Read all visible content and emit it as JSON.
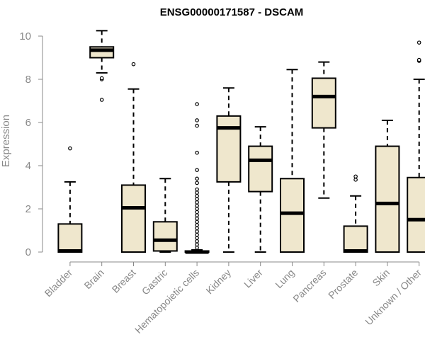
{
  "chart_data": {
    "type": "box",
    "title": "ENSG00000171587 - DSCAM",
    "xlabel": "",
    "ylabel": "Expression",
    "ylim": [
      0,
      10
    ],
    "yticks": [
      0,
      2,
      4,
      6,
      8,
      10
    ],
    "categories": [
      "Bladder",
      "Brain",
      "Breast",
      "Gastric",
      "Hematopoietic cells",
      "Kidney",
      "Liver",
      "Lung",
      "Pancreas",
      "Prostate",
      "Skin",
      "Unknown / Other"
    ],
    "boxes": [
      {
        "min": 0,
        "q1": 0,
        "median": 0.05,
        "q3": 1.3,
        "max": 3.25,
        "outliers": [
          4.8
        ]
      },
      {
        "min": 8.3,
        "q1": 9.0,
        "median": 9.35,
        "q3": 9.5,
        "max": 10.25,
        "outliers": [
          8.0,
          8.05,
          7.05
        ]
      },
      {
        "min": 0,
        "q1": 0,
        "median": 2.05,
        "q3": 3.1,
        "max": 7.55,
        "outliers": [
          8.7
        ]
      },
      {
        "min": 0,
        "q1": 0.05,
        "median": 0.55,
        "q3": 1.4,
        "max": 3.4,
        "outliers": []
      },
      {
        "min": 0,
        "q1": 0,
        "median": 0,
        "q3": 0.05,
        "max": 0.1,
        "outliers": [
          6.85,
          6.1,
          5.85,
          4.6,
          3.8,
          3.4,
          3.2,
          2.9,
          2.75,
          2.6,
          2.45,
          2.3,
          2.15,
          2.0,
          1.85,
          1.7,
          1.55,
          1.4,
          1.25,
          1.1,
          0.95,
          0.8,
          0.65,
          0.5,
          0.35,
          0.2
        ]
      },
      {
        "min": 0,
        "q1": 3.25,
        "median": 5.75,
        "q3": 6.3,
        "max": 7.6,
        "outliers": []
      },
      {
        "min": 0,
        "q1": 2.8,
        "median": 4.25,
        "q3": 4.9,
        "max": 5.8,
        "outliers": []
      },
      {
        "min": 0,
        "q1": 0,
        "median": 1.8,
        "q3": 3.4,
        "max": 8.45,
        "outliers": []
      },
      {
        "min": 2.5,
        "q1": 5.75,
        "median": 7.2,
        "q3": 8.05,
        "max": 8.8,
        "outliers": []
      },
      {
        "min": 0,
        "q1": 0,
        "median": 0.05,
        "q3": 1.2,
        "max": 2.6,
        "outliers": [
          3.35,
          3.5
        ]
      },
      {
        "min": 0,
        "q1": 0,
        "median": 2.25,
        "q3": 4.9,
        "max": 6.1,
        "outliers": []
      },
      {
        "min": 0,
        "q1": 0,
        "median": 1.5,
        "q3": 3.45,
        "max": 8.0,
        "outliers": [
          8.85,
          8.9,
          9.7
        ]
      }
    ],
    "box_fill": "#efe7cd",
    "box_stroke": "#000000",
    "axis_color": "#888888",
    "title_color": "#000000"
  }
}
